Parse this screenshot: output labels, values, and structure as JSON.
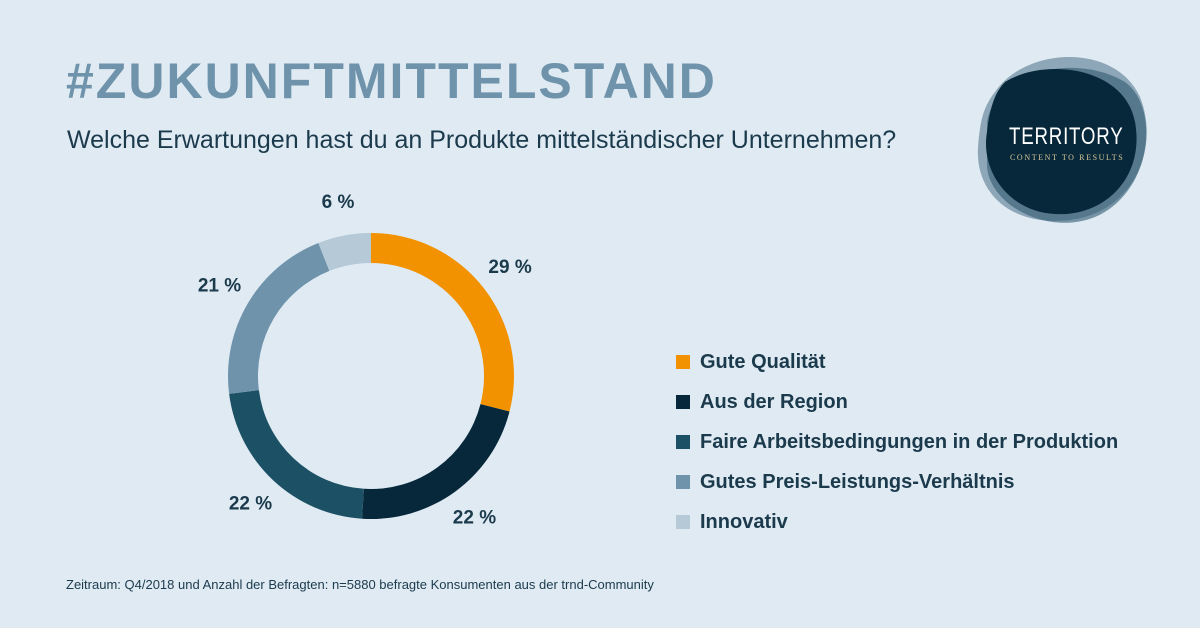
{
  "header": {
    "headline": "#ZUKUNFTMITTELSTAND",
    "question": "Welche Erwartungen hast du an Produkte mittelständischer Unternehmen?"
  },
  "logo": {
    "name": "TERRITORY",
    "tagline": "CONTENT TO RESULTS"
  },
  "chart_data": {
    "type": "pie",
    "variant": "donut",
    "title": "Welche Erwartungen hast du an Produkte mittelständischer Unternehmen?",
    "unit": "%",
    "series": [
      {
        "name": "Gute Qualität",
        "value": 29,
        "label": "29 %",
        "color": "#f39200"
      },
      {
        "name": "Aus der Region",
        "value": 22,
        "label": "22 %",
        "color": "#06283a"
      },
      {
        "name": "Faire Arbeitsbedingungen in der Produktion",
        "value": 22,
        "label": "22 %",
        "color": "#1c5064"
      },
      {
        "name": "Gutes Preis-Leistungs-Verhältnis",
        "value": 21,
        "label": "21 %",
        "color": "#6e93ab"
      },
      {
        "name": "Innovativ",
        "value": 6,
        "label": "6 %",
        "color": "#b5c9d7"
      }
    ],
    "legend_position": "right"
  },
  "footnote": "Zeitraum: Q4/2018 und Anzahl der Befragten: n=5880 befragte Konsumenten aus der trnd-Community"
}
